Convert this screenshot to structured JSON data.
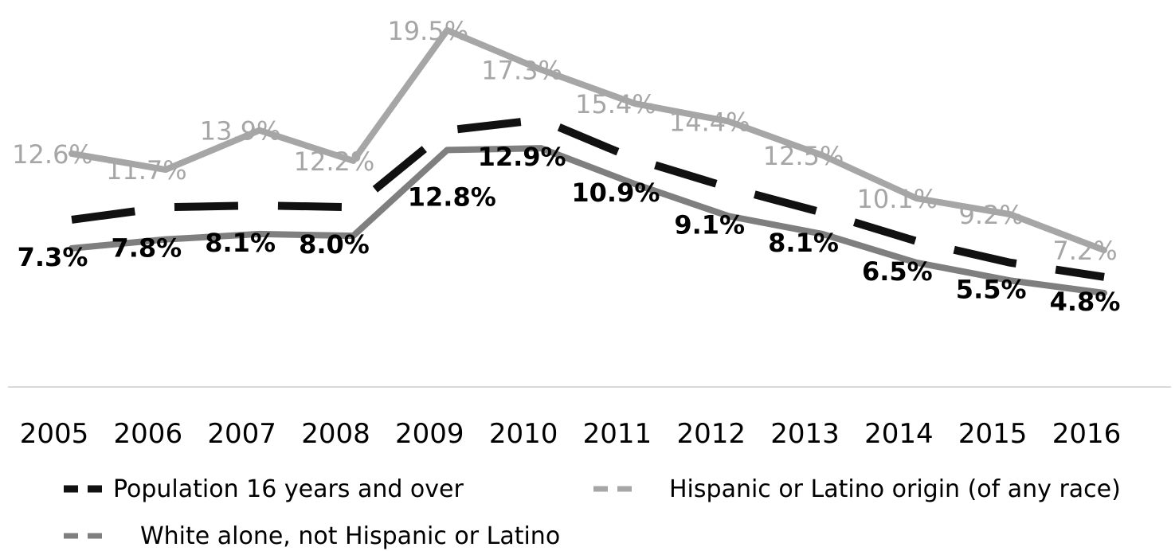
{
  "chart_data": {
    "type": "line",
    "categories": [
      "2005",
      "2006",
      "2007",
      "2008",
      "2009",
      "2010",
      "2011",
      "2012",
      "2013",
      "2014",
      "2015",
      "2016"
    ],
    "series": [
      {
        "name": "Population 16 years and over",
        "values": [
          8.9,
          9.6,
          9.7,
          9.6,
          13.9,
          14.5,
          12.3,
          10.7,
          9.3,
          7.7,
          6.5,
          5.7
        ],
        "color": "#111111",
        "style": "dashed"
      },
      {
        "name": "Hispanic or Latino origin (of any race)",
        "values": [
          12.6,
          11.7,
          13.9,
          12.2,
          19.5,
          17.3,
          15.4,
          14.4,
          12.5,
          10.1,
          9.2,
          7.2
        ],
        "labels": [
          "12.6%",
          "11.7%",
          "13.9%",
          "12.2%",
          "19.5%",
          "17.3%",
          "15.4%",
          "14.4%",
          "12.5%",
          "10.1%",
          "9.2%",
          "7.2%"
        ],
        "color": "#a6a6a6",
        "style": "solid"
      },
      {
        "name": "White alone, not Hispanic or Latino",
        "values": [
          7.3,
          7.8,
          8.1,
          8.0,
          12.8,
          12.9,
          10.9,
          9.1,
          8.1,
          6.5,
          5.5,
          4.8
        ],
        "labels": [
          "7.3%",
          "7.8%",
          "8.1%",
          "8.0%",
          "12.8%",
          "12.9%",
          "10.9%",
          "9.1%",
          "8.1%",
          "6.5%",
          "5.5%",
          "4.8%"
        ],
        "color": "#7f7f7f",
        "style": "solid"
      }
    ],
    "ylim": [
      0,
      20
    ],
    "grid": false,
    "legend_position": "bottom"
  }
}
